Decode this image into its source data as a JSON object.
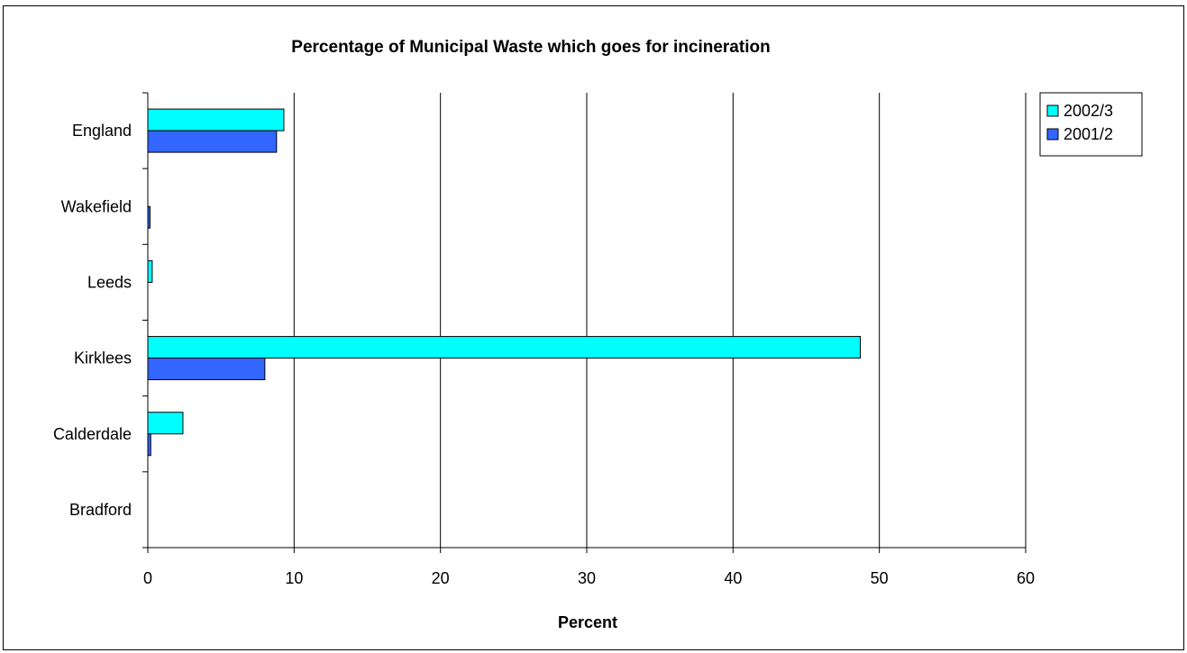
{
  "chart_data": {
    "type": "bar",
    "orientation": "horizontal",
    "title": "Percentage of Municipal Waste which goes for incineration",
    "xlabel": "Percent",
    "ylabel": "",
    "xlim": [
      0,
      60
    ],
    "xticks": [
      0,
      10,
      20,
      30,
      40,
      50,
      60
    ],
    "grid": true,
    "legend_position": "top-right",
    "categories": [
      "England",
      "Wakefield",
      "Leeds",
      "Kirklees",
      "Calderdale",
      "Bradford"
    ],
    "series": [
      {
        "name": "2002/3",
        "color": "#00FFFF",
        "values": [
          9.3,
          0,
          0.3,
          48.7,
          2.4,
          0
        ]
      },
      {
        "name": "2001/2",
        "color": "#3366FF",
        "values": [
          8.8,
          0.15,
          0,
          8.0,
          0.2,
          0
        ]
      }
    ]
  }
}
